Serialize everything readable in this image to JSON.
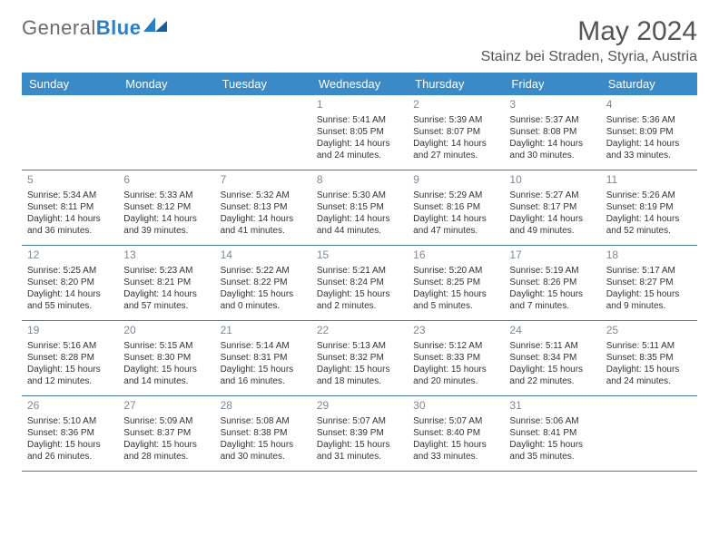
{
  "logo": {
    "text_gray": "General",
    "text_blue": "Blue"
  },
  "title": "May 2024",
  "location": "Stainz bei Straden, Styria, Austria",
  "colors": {
    "header_bg": "#3a8ac8",
    "header_text": "#ffffff",
    "day_num": "#7d8a96",
    "body_text": "#333333",
    "divider": "#4a7aa8",
    "logo_gray": "#6b6b6b",
    "logo_blue": "#2a7ec4"
  },
  "dow": [
    "Sunday",
    "Monday",
    "Tuesday",
    "Wednesday",
    "Thursday",
    "Friday",
    "Saturday"
  ],
  "weeks": [
    [
      null,
      null,
      null,
      {
        "n": "1",
        "sr": "5:41 AM",
        "ss": "8:05 PM",
        "dh": "14",
        "dm": "24"
      },
      {
        "n": "2",
        "sr": "5:39 AM",
        "ss": "8:07 PM",
        "dh": "14",
        "dm": "27"
      },
      {
        "n": "3",
        "sr": "5:37 AM",
        "ss": "8:08 PM",
        "dh": "14",
        "dm": "30"
      },
      {
        "n": "4",
        "sr": "5:36 AM",
        "ss": "8:09 PM",
        "dh": "14",
        "dm": "33"
      }
    ],
    [
      {
        "n": "5",
        "sr": "5:34 AM",
        "ss": "8:11 PM",
        "dh": "14",
        "dm": "36"
      },
      {
        "n": "6",
        "sr": "5:33 AM",
        "ss": "8:12 PM",
        "dh": "14",
        "dm": "39"
      },
      {
        "n": "7",
        "sr": "5:32 AM",
        "ss": "8:13 PM",
        "dh": "14",
        "dm": "41"
      },
      {
        "n": "8",
        "sr": "5:30 AM",
        "ss": "8:15 PM",
        "dh": "14",
        "dm": "44"
      },
      {
        "n": "9",
        "sr": "5:29 AM",
        "ss": "8:16 PM",
        "dh": "14",
        "dm": "47"
      },
      {
        "n": "10",
        "sr": "5:27 AM",
        "ss": "8:17 PM",
        "dh": "14",
        "dm": "49"
      },
      {
        "n": "11",
        "sr": "5:26 AM",
        "ss": "8:19 PM",
        "dh": "14",
        "dm": "52"
      }
    ],
    [
      {
        "n": "12",
        "sr": "5:25 AM",
        "ss": "8:20 PM",
        "dh": "14",
        "dm": "55"
      },
      {
        "n": "13",
        "sr": "5:23 AM",
        "ss": "8:21 PM",
        "dh": "14",
        "dm": "57"
      },
      {
        "n": "14",
        "sr": "5:22 AM",
        "ss": "8:22 PM",
        "dh": "15",
        "dm": "0"
      },
      {
        "n": "15",
        "sr": "5:21 AM",
        "ss": "8:24 PM",
        "dh": "15",
        "dm": "2"
      },
      {
        "n": "16",
        "sr": "5:20 AM",
        "ss": "8:25 PM",
        "dh": "15",
        "dm": "5"
      },
      {
        "n": "17",
        "sr": "5:19 AM",
        "ss": "8:26 PM",
        "dh": "15",
        "dm": "7"
      },
      {
        "n": "18",
        "sr": "5:17 AM",
        "ss": "8:27 PM",
        "dh": "15",
        "dm": "9"
      }
    ],
    [
      {
        "n": "19",
        "sr": "5:16 AM",
        "ss": "8:28 PM",
        "dh": "15",
        "dm": "12"
      },
      {
        "n": "20",
        "sr": "5:15 AM",
        "ss": "8:30 PM",
        "dh": "15",
        "dm": "14"
      },
      {
        "n": "21",
        "sr": "5:14 AM",
        "ss": "8:31 PM",
        "dh": "15",
        "dm": "16"
      },
      {
        "n": "22",
        "sr": "5:13 AM",
        "ss": "8:32 PM",
        "dh": "15",
        "dm": "18"
      },
      {
        "n": "23",
        "sr": "5:12 AM",
        "ss": "8:33 PM",
        "dh": "15",
        "dm": "20"
      },
      {
        "n": "24",
        "sr": "5:11 AM",
        "ss": "8:34 PM",
        "dh": "15",
        "dm": "22"
      },
      {
        "n": "25",
        "sr": "5:11 AM",
        "ss": "8:35 PM",
        "dh": "15",
        "dm": "24"
      }
    ],
    [
      {
        "n": "26",
        "sr": "5:10 AM",
        "ss": "8:36 PM",
        "dh": "15",
        "dm": "26"
      },
      {
        "n": "27",
        "sr": "5:09 AM",
        "ss": "8:37 PM",
        "dh": "15",
        "dm": "28"
      },
      {
        "n": "28",
        "sr": "5:08 AM",
        "ss": "8:38 PM",
        "dh": "15",
        "dm": "30"
      },
      {
        "n": "29",
        "sr": "5:07 AM",
        "ss": "8:39 PM",
        "dh": "15",
        "dm": "31"
      },
      {
        "n": "30",
        "sr": "5:07 AM",
        "ss": "8:40 PM",
        "dh": "15",
        "dm": "33"
      },
      {
        "n": "31",
        "sr": "5:06 AM",
        "ss": "8:41 PM",
        "dh": "15",
        "dm": "35"
      },
      null
    ]
  ],
  "labels": {
    "sunrise": "Sunrise:",
    "sunset": "Sunset:",
    "daylight_prefix": "Daylight:",
    "hours_word": "hours",
    "and_word": "and",
    "minutes_word": "minutes."
  }
}
